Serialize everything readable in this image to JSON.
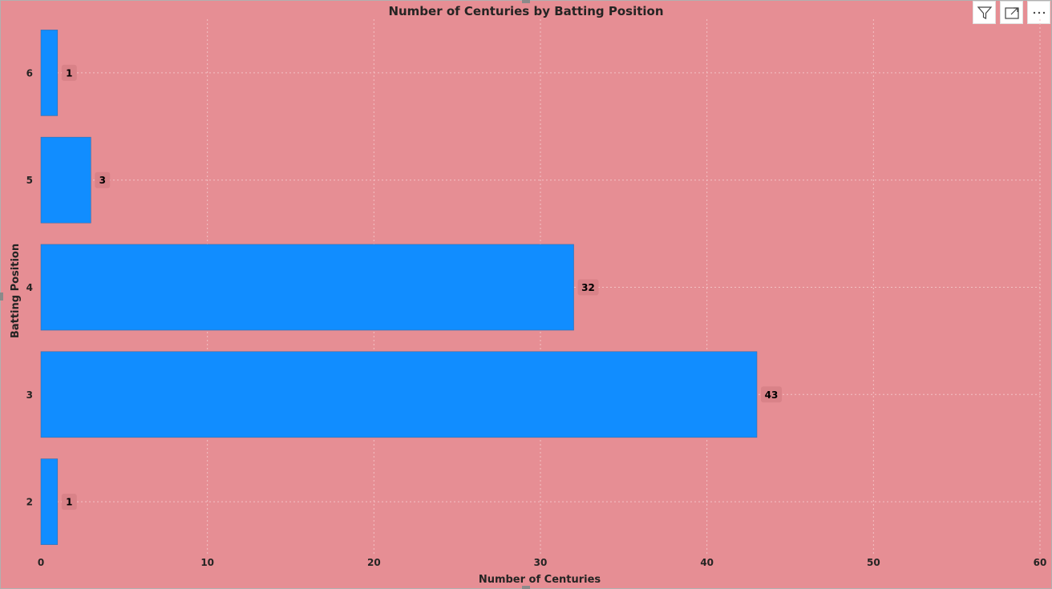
{
  "toolbar": {
    "icons": [
      "filter-icon",
      "focus-mode-icon",
      "more-options-icon"
    ]
  },
  "chart_data": {
    "type": "bar",
    "orientation": "horizontal",
    "title": "Number of Centuries by Batting Position",
    "xlabel": "Number of Centuries",
    "ylabel": "Batting Position",
    "categories": [
      "6",
      "5",
      "4",
      "3",
      "2"
    ],
    "values": [
      1,
      3,
      32,
      43,
      1
    ],
    "xlim": [
      0,
      60
    ],
    "xticks": [
      0,
      10,
      20,
      30,
      40,
      50,
      60
    ],
    "grid": true,
    "data_labels": true,
    "colors": {
      "bar": "#118dff",
      "background": "#e68e94",
      "label_bg": "#d98288",
      "grid": "#f3c2c5"
    }
  }
}
